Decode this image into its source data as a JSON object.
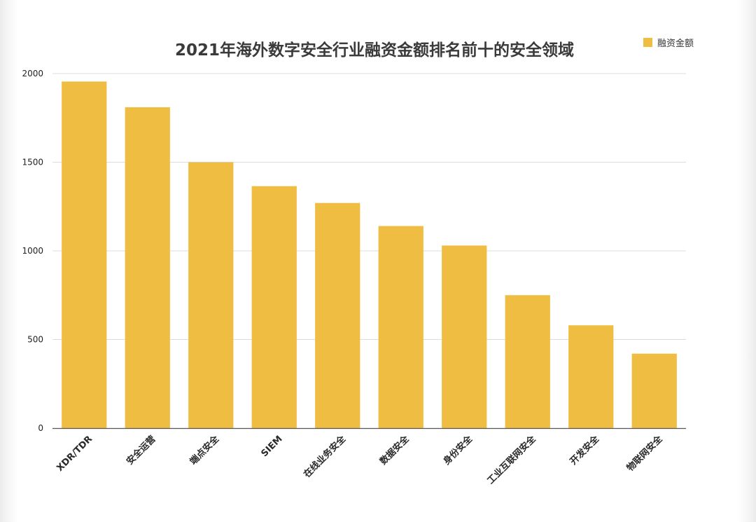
{
  "chart_data": {
    "type": "bar",
    "title": "2021年海外数字安全行业融资金额排名前十的安全领域",
    "xlabel": "",
    "ylabel": "",
    "legend": {
      "position": "top-right",
      "entries": [
        "融资金额"
      ]
    },
    "grid": true,
    "ylim": [
      0,
      2000
    ],
    "yticks": [
      0,
      500,
      1000,
      1500,
      2000
    ],
    "categories": [
      "XDR/TDR",
      "安全运营",
      "端点安全",
      "SIEM",
      "在线业务安全",
      "数据安全",
      "身份安全",
      "工业互联网安全",
      "开发安全",
      "物联网安全"
    ],
    "series": [
      {
        "name": "融资金额",
        "values": [
          1955,
          1810,
          1500,
          1365,
          1270,
          1140,
          1030,
          750,
          580,
          420
        ]
      }
    ],
    "colors": {
      "bar": "#f0bd43",
      "grid": "#dcdcdc",
      "axis": "#555555"
    }
  }
}
